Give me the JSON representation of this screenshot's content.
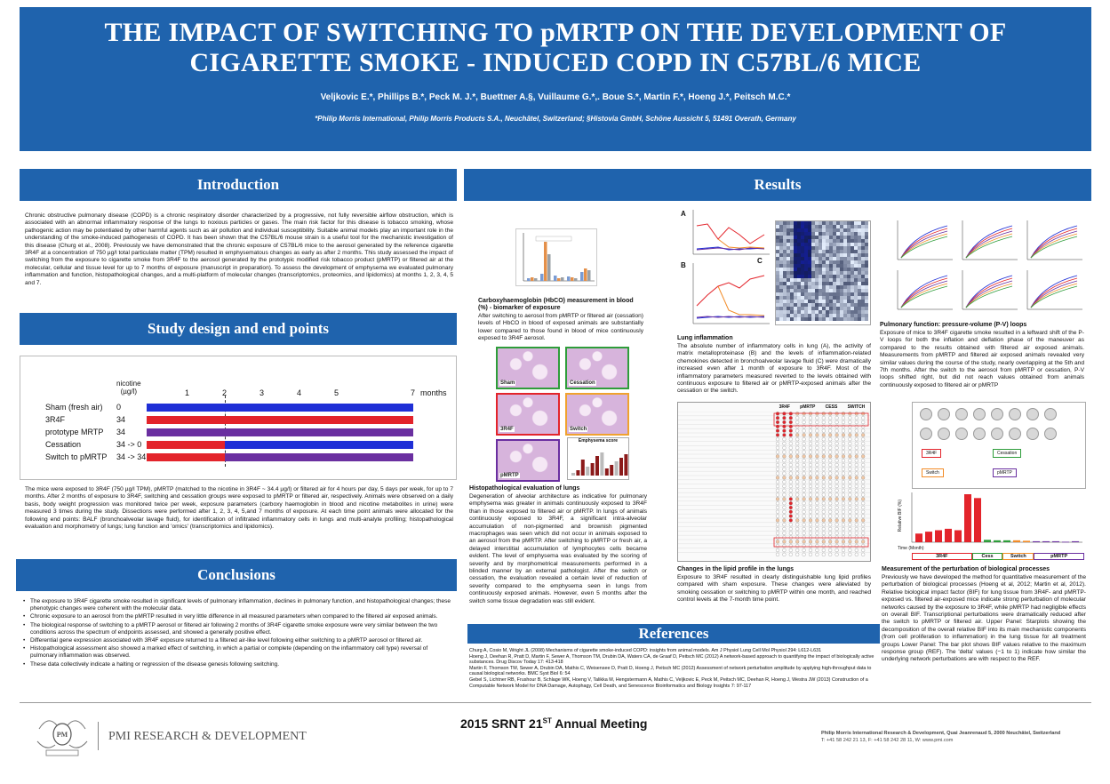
{
  "banner": {
    "title_line1": "THE IMPACT OF SWITCHING TO pMRTP ON THE DEVELOPMENT OF",
    "title_line2": "CIGARETTE SMOKE - INDUCED COPD IN C57BL/6 MICE",
    "authors": "Veljkovic E.*, Phillips B.*, Peck M. J.*, Buettner A.§, Vuillaume G.*,. Boue S.*, Martin F.*, Hoeng J.*, Peitsch M.C.*",
    "affiliation": "*Philip Morris International, Philip Morris Products S.A., Neuchâtel, Switzerland; §Histovia GmbH, Schöne Aussicht 5, 51491 Overath, Germany"
  },
  "sections": {
    "introduction": "Introduction",
    "study_design": "Study design and end points",
    "conclusions": "Conclusions",
    "results": "Results",
    "references": "References"
  },
  "introduction_text": "Chronic obstructive pulmonary disease (COPD) is a chronic respiratory disorder characterized by a progressive, not fully reversible airflow obstruction, which is associated with an abnormal inflammatory response of the lungs to noxious particles or gases. The main risk factor for this disease is tobacco smoking, whose pathogenic action may be potentiated by other harmful agents such as air pollution and individual susceptibility. Suitable animal models play an important role in the understanding of the smoke-induced pathogenesis of COPD. It has been shown that the C57BL/6 mouse strain is a useful tool for the mechanistic investigation of this disease (Churg et al., 2008). Previously we have demonstrated that the chronic exposure of C57BL/6 mice to the aerosol generated by the reference cigarette 3R4F at a concentration of 750 µg/l total particulate matter (TPM) resulted in emphysematous changes as early as after 2 months. This study assessed the impact of switching from the exposure to cigarette smoke from 3R4F to the aerosol generated by the prototypic modified risk tobacco product (pMRTP) or filtered air at the molecular, cellular and tissue level for up to 7 months of exposure (manuscript in preparation). To assess the development of emphysema we evaluated pulmonary inflammation and function, histopathological changes, and a multi-platform of molecular changes (transcriptomics, proteomics, and lipidomics) at months 1, 2, 3, 4, 5 and 7.",
  "timeline": {
    "nicotine_label_1": "nicotine",
    "nicotine_label_2": "(µg/l)",
    "months_label": "months",
    "ticks": [
      "1",
      "2",
      "3",
      "4",
      "5",
      "7"
    ],
    "rows": [
      {
        "name": "Sham (fresh air)",
        "nicotine": "0"
      },
      {
        "name": "3R4F",
        "nicotine": "34"
      },
      {
        "name": "prototype MRTP",
        "nicotine": "34"
      },
      {
        "name": "Cessation",
        "nicotine": "34 -> 0"
      },
      {
        "name": "Switch to pMRTP",
        "nicotine": "34 -> 34"
      }
    ],
    "colors": {
      "sham": "#1f2fd6",
      "r4f": "#e3242b",
      "mrtp": "#6a2fa0"
    }
  },
  "study_text": "The mice were exposed to 3R4F (750 µg/l TPM), pMRTP (matched to the nicotine in 3R4F ~ 34.4 µg/l) or filtered air for 4 hours per day, 5 days per week, for up to 7 months. After 2 months of exposure to 3R4F, switching and cessation groups were exposed to pMRTP or filtered air, respectively. Animals were observed on a daily basis, body weight progression was monitored twice per week, exposure parameters (carboxy haemoglobin in blood and nicotine metabolites in urine) were measured 3 times during the study. Dissections were performed after 1, 2, 3, 4, 5,and 7 months of exposure. At each time point animals were allocated for the following end points: BALF (bronchoalveolar lavage fluid), for identification of infiltrated inflammatory cells in lungs and multi-analyte profiling; histopathological evaluation and morphometry of lungs; lung function and 'omics' (transcriptomics and lipidomics).",
  "conclusions": [
    "The exposure to 3R4F cigarette smoke resulted in significant levels of pulmonary inflammation, declines in pulmonary function, and histopathological changes; these phenotypic changes were coherent with the molecular data.",
    "Chronic exposure to an aerosol from the pMRTP resulted in very little difference in all measured parameters when compared to the filtered air exposed animals.",
    "The biological response of switching to a pMRTP aerosol or filtered air following 2 months of 3R4F cigarette smoke exposure were very similar between the two conditions across the spectrum of endpoints assessed, and showed a generally positive effect.",
    "Differential gene expression associated with 3R4F exposure returned to a filtered air-like level following either switching to a pMRTP aerosol or filtered air.",
    "Histopathological assessment also showed a marked effect of switching, in which a partial or complete (depending on the inflammatory cell type) reversal of pulmonary inflammation was observed.",
    "These data collectively indicate a halting or regression of the disease genesis following switching."
  ],
  "results": {
    "hbco_title": "Carboxyhaemoglobin (HbCO) measurement in blood (%) - biomarker of exposure",
    "hbco_text": "After switching to aerosol from pMRTP or filtered air (cessation) levels of HbCO in blood of exposed animals are substantially lower compared to those found in blood of mice continuously exposed to 3R4F aerosol.",
    "histo_labels": [
      "Sham",
      "Cessation",
      "3R4F",
      "Switch",
      "pMRTP"
    ],
    "emphysema_label": "Emphysema score",
    "histo_title": "Histopathological evaluation of lungs",
    "histo_text": "Degeneration of alveolar architecture as indicative for pulmonary emphysema was greater in animals continuously exposed to 3R4F than in those exposed to filtered air or pMRTP. In lungs of animals continuously exposed to 3R4F, a significant intra-alveolar accumulation of non-pigmented and brownish pigmented macrophages was seen which did not occur in animals exposed to an aerosol from the pMRTP. After switching to pMRTP or fresh air, a delayed interstitial accumulation of lymphocytes cells became evident. The level of emphysema was evaluated by the scoring of severity and by morphometrical measurements performed in a blinded manner by an external pathologist. After the switch or cessation, the evaluation revealed a certain level of reduction of severity compared to the emphysema seen in lungs from continuously exposed animals. However, even 5 months after the switch some tissue degradation was still evident.",
    "panel_labels": [
      "A",
      "B",
      "C"
    ],
    "inflam_title": "Lung inflammation",
    "inflam_text": "The absolute number of inflammatory cells in lung (A), the activity of matrix metalloproteinase (B) and the levels of inflammation-related chemokines detected in bronchoalveolar lavage fluid (C) were dramatically increased even after 1 month of exposure to 3R4F. Most of the inflammatory parameters measured reverted to the levels obtained with continuous exposure to filtered air or pMRTP-exposed animals after the cessation or the switch.",
    "lipid_title": "Changes in the lipid profile in the lungs",
    "lipid_text": "Exposure to 3R4F resulted in clearly distinguishable lung lipid profiles compared with sham exposure. These changes were alleviated by smoking cessation or switching to pMRTP within one month, and reached control levels at the 7-month time point.",
    "pv_title": "Pulmonary function: pressure-volume (P-V) loops",
    "pv_text": "Exposure of mice to 3R4F cigarette smoke resulted in a leftward shift of the P-V loops for both the inflation and deflation phase of the maneuver as compared to the results obtained with filtered air exposed animals. Measurements from pMRTP and filtered air exposed animals revealed very similar values during the course of the study, nearly overlapping at the 5th and 7th months. After the switch to the aerosol from pMRTP or cessation, P-V loops shifted right, but did not reach values obtained from animals continuously exposed to filtered air or pMRTP",
    "bif_title": "Measurement of the perturbation of biological processes",
    "bif_text": "Previously we have developed the method for quantitative measurement of the perturbation of biological processes (Hoeng et al, 2012; Martin et al, 2012). Relative biological impact factor (BIF) for lung tissue from 3R4F- and pMRTP-exposed vs. filtered air-exposed mice indicate strong perturbation of molecular networks caused by the exposure to 3R4F, while pMRTP had negligible effects on overall BIF. Transcriptional perturbations were dramatically reduced after the switch to pMRTP or filtered air. Upper Panel: Starplots showing the decomposition of the overall relative BIF into its main mechanistic components (from cell proliferation to inflammation) in the lung tissue for all treatment groups Lower Panel: The bar plot shows BIF values relative to the maximum response group (REF). The 'delta' values (−1 to 1) indicate how similar the underlying network perturbations are with respect to the REF.",
    "bif_groups": [
      "3R4F",
      "Cess",
      "Switch",
      "pMRTP"
    ],
    "bif_ylabel": "Relative BIF (%)",
    "bif_time": "Time (Month)",
    "star_labels": [
      "3R4F",
      "Cessation",
      "Switch",
      "pMRTP"
    ],
    "lipid_header": [
      "3R4F",
      "pMRTP",
      "CESS",
      "SWITCH"
    ]
  },
  "bif_chart": {
    "type": "bar",
    "series": [
      {
        "values": [
          18,
          22,
          25,
          28,
          25,
          100,
          92,
          5,
          4,
          4,
          4,
          3,
          2,
          2,
          2,
          1,
          2
        ]
      }
    ],
    "ylim": [
      0,
      100
    ]
  },
  "references": [
    "Churg A, Cosio M, Wright JL (2008) Mechanisms of cigarette smoke-induced COPD: insights from animal models. Am J Physiol Lung Cell Mol Physiol 294: L612-L631",
    "Hoeng J, Deehan R, Pratt D, Martin F, Sewer A, Thomson TM, Drubin DA, Waters CA, de Graaf D, Peitsch MC (2012) A network-based approach to quantifying the impact of biologically active substances. Drug Discov Today 17: 413-418",
    "Martin F, Thomson TM, Sewer A, Drubin DA, Mathis C, Weisensee D, Pratt D, Hoeng J, Peitsch MC (2012) Assessment of network perturbation amplitude by applying high-throughput data to causal biological networks. BMC Syst Biol 6: 54",
    "Gebel S, Lichtner RB, Frushour B, Schlage WK, Hoeng V, Talikka M, Hengstermann A, Mathis C, Veljkovic E, Peck M, Peitsch MC, Deehan R, Hoeng J, Westra JW (2013) Construction of a Computable Network Model for DNA Damage, Autophagy, Cell Death, and Senescence Bioinformatics and Biology Insights 7: 97-117"
  ],
  "footer": {
    "org": "PMI RESEARCH & DEVELOPMENT",
    "meeting_pre": "2015 SRNT 21",
    "meeting_sup": "ST",
    "meeting_post": " Annual Meeting",
    "address_1": "Philip Morris International Research & Development, Quai Jeanrenaud 5, 2000 Neuchâtel, Switzerland",
    "address_2": "T: +41 58 242 21 13, F: +41 58 242 28 11, W: www.pmi.com"
  }
}
